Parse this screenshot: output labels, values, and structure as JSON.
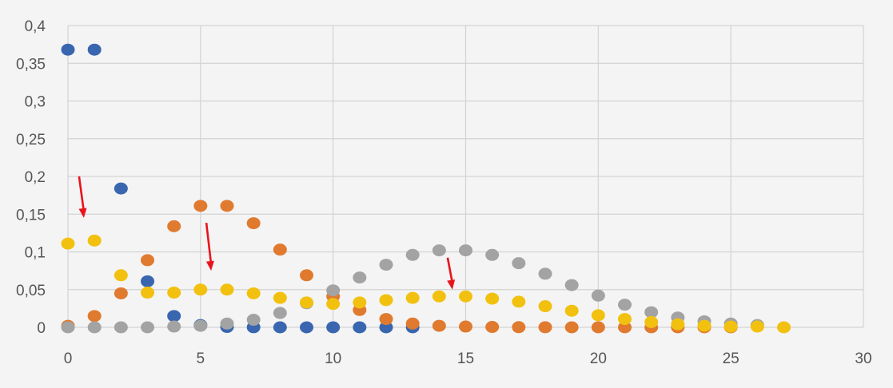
{
  "chart_data": {
    "type": "scatter",
    "title": "",
    "xlabel": "",
    "ylabel": "",
    "xlim": [
      0,
      30
    ],
    "ylim": [
      0,
      0.4
    ],
    "x_ticks": [
      0,
      5,
      10,
      15,
      20,
      25,
      30
    ],
    "y_ticks": [
      0,
      0.05,
      0.1,
      0.15,
      0.2,
      0.25,
      0.3,
      0.35,
      0.4
    ],
    "x_tick_labels": [
      "0",
      "5",
      "10",
      "15",
      "20",
      "25",
      "30"
    ],
    "y_tick_labels": [
      "0",
      "0,05",
      "0,1",
      "0,15",
      "0,2",
      "0,25",
      "0,3",
      "0,35",
      "0,4"
    ],
    "grid": true,
    "legend": "none",
    "series": [
      {
        "color": "#3a66b0",
        "x": [
          0,
          1,
          2,
          3,
          4,
          5,
          6,
          7,
          8,
          9,
          10,
          11,
          12,
          13
        ],
        "y": [
          0.368,
          0.368,
          0.184,
          0.061,
          0.015,
          0.003,
          0.0005,
          0.0001,
          0,
          0,
          0,
          0,
          0,
          0
        ]
      },
      {
        "color": "#e07a2e",
        "x": [
          0,
          1,
          2,
          3,
          4,
          5,
          6,
          7,
          8,
          9,
          10,
          11,
          12,
          13,
          14,
          15,
          16,
          17,
          18,
          19,
          20,
          21,
          22,
          23,
          24,
          25
        ],
        "y": [
          0.002,
          0.015,
          0.045,
          0.089,
          0.134,
          0.161,
          0.161,
          0.138,
          0.103,
          0.069,
          0.041,
          0.023,
          0.011,
          0.005,
          0.002,
          0.001,
          0.0005,
          0.0002,
          0.0001,
          0,
          0,
          0,
          0,
          0,
          0,
          0
        ]
      },
      {
        "color": "#a3a3a3",
        "x": [
          0,
          1,
          2,
          3,
          4,
          5,
          6,
          7,
          8,
          9,
          10,
          11,
          12,
          13,
          14,
          15,
          16,
          17,
          18,
          19,
          20,
          21,
          22,
          23,
          24,
          25,
          26
        ],
        "y": [
          0,
          0,
          0,
          0,
          0.001,
          0.002,
          0.005,
          0.01,
          0.019,
          0.032,
          0.049,
          0.066,
          0.083,
          0.096,
          0.102,
          0.102,
          0.096,
          0.085,
          0.071,
          0.056,
          0.042,
          0.03,
          0.02,
          0.013,
          0.008,
          0.005,
          0.003
        ]
      },
      {
        "color": "#f2c10f",
        "x": [
          0,
          1,
          2,
          3,
          4,
          5,
          6,
          7,
          8,
          9,
          10,
          11,
          12,
          13,
          14,
          15,
          16,
          17,
          18,
          19,
          20,
          21,
          22,
          23,
          24,
          25,
          26,
          27
        ],
        "y": [
          0.111,
          0.115,
          0.069,
          0.046,
          0.046,
          0.05,
          0.05,
          0.045,
          0.039,
          0.033,
          0.031,
          0.033,
          0.036,
          0.039,
          0.041,
          0.041,
          0.038,
          0.034,
          0.028,
          0.022,
          0.016,
          0.011,
          0.007,
          0.004,
          0.002,
          0.001,
          0.001,
          0
        ]
      }
    ],
    "annotations": [
      {
        "type": "arrow",
        "color": "#e8141c",
        "points_to": {
          "x": 0.6,
          "y": 0.145
        }
      },
      {
        "type": "arrow",
        "color": "#e8141c",
        "points_to": {
          "x": 5.4,
          "y": 0.075
        }
      },
      {
        "type": "arrow",
        "color": "#e8141c",
        "points_to": {
          "x": 14.5,
          "y": 0.05
        }
      }
    ]
  }
}
